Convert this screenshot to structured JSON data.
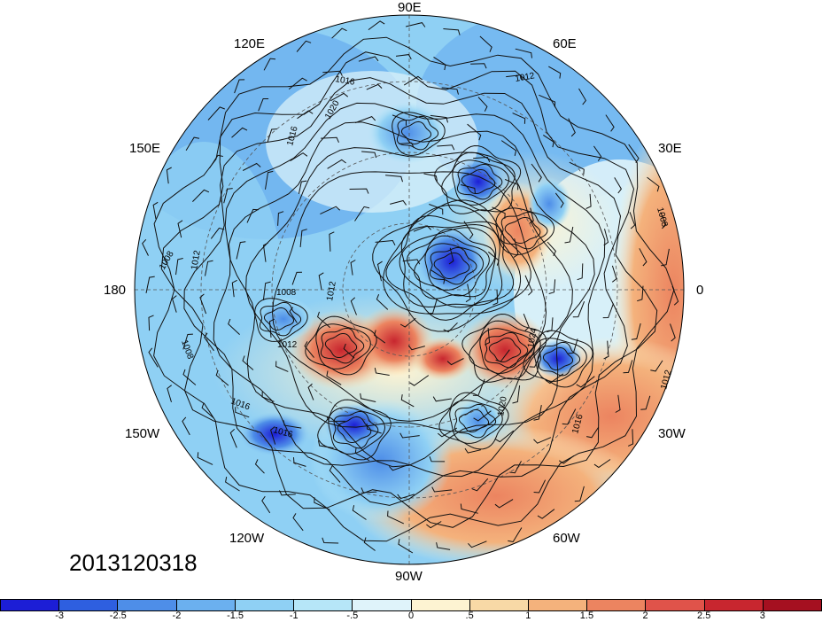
{
  "date_stamp": "2013120318",
  "longitude_labels": {
    "e90": "90E",
    "e60": "60E",
    "e120": "120E",
    "e150": "150E",
    "e30": "30E",
    "d180": "180",
    "d0": "0",
    "w150": "150W",
    "w30": "30W",
    "w120": "120W",
    "w60": "60W",
    "w90": "90W"
  },
  "isobar_labels": [
    {
      "text": "1016"
    },
    {
      "text": "1012"
    },
    {
      "text": "1020"
    },
    {
      "text": "1016"
    },
    {
      "text": "1008"
    },
    {
      "text": "1008"
    },
    {
      "text": "1012"
    },
    {
      "text": "1012"
    },
    {
      "text": "1008"
    },
    {
      "text": "1012"
    },
    {
      "text": "1016"
    },
    {
      "text": "1016"
    },
    {
      "text": "1020"
    },
    {
      "text": "1024"
    },
    {
      "text": "1016"
    },
    {
      "text": "1012"
    },
    {
      "text": "1008"
    }
  ],
  "colorbar": {
    "colors": [
      "#1c1ed6",
      "#2e5fe0",
      "#4e8ee8",
      "#6bb0ef",
      "#8fd0f4",
      "#b6e6f8",
      "#dff3fa",
      "#fdf3d2",
      "#f8d9a6",
      "#f4b27c",
      "#ec8460",
      "#e0534a",
      "#c8262f",
      "#a51020"
    ],
    "tick_labels": [
      "-3",
      "-2.5",
      "-2",
      "-1.5",
      "-1",
      "-.5",
      "0",
      ".5",
      "1",
      "1.5",
      "2",
      "2.5",
      "3"
    ]
  }
}
